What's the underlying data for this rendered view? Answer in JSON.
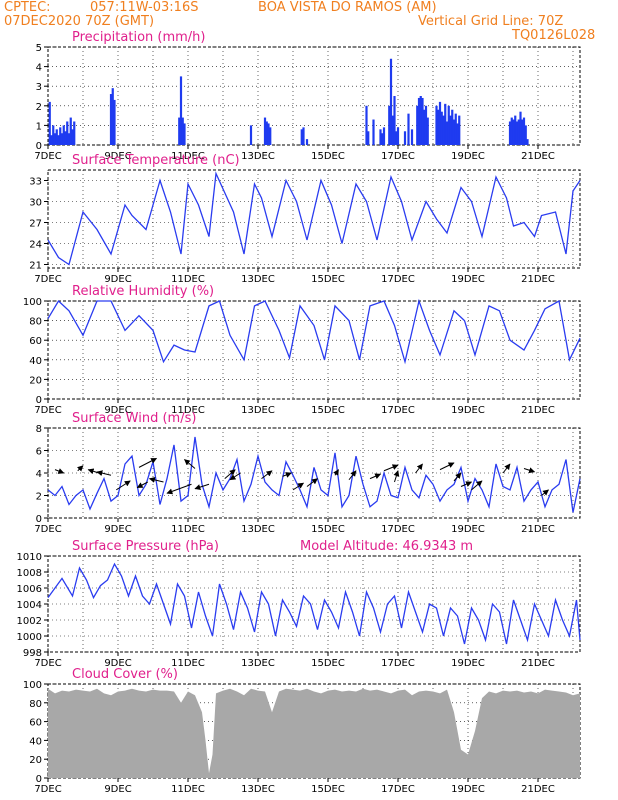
{
  "header": {
    "source": "CPTEC:",
    "coords": "057:11W-03:16S",
    "station": "BOA VISTA DO RAMOS (AM)",
    "datetime": "07DEC2020 70Z (GMT)",
    "grid_line": "Vertical Grid Line: 70Z",
    "code": "TQ0126L028"
  },
  "colors": {
    "line": "#2a3cf0",
    "bar": "#1f3bf0",
    "cloud": "#a8a8a8",
    "title": "#e0208c",
    "header": "#f07f1f",
    "grid": "#000000"
  },
  "chart_data": [
    {
      "id": "precip",
      "type": "bar",
      "title": "Precipitation (mm/h)",
      "ylim": [
        0,
        5
      ],
      "yticks": [
        0,
        1,
        2,
        3,
        4,
        5
      ],
      "xlim": [
        7,
        22.2
      ],
      "xticks": [
        "7DEC",
        "9DEC",
        "11DEC",
        "13DEC",
        "15DEC",
        "17DEC",
        "19DEC",
        "21DEC"
      ],
      "xtick_days": [
        7,
        9,
        11,
        13,
        15,
        17,
        19,
        21
      ],
      "x": [
        7.05,
        7.1,
        7.15,
        7.2,
        7.25,
        7.3,
        7.35,
        7.4,
        7.45,
        7.5,
        7.55,
        7.6,
        7.65,
        7.7,
        7.75,
        8.8,
        8.85,
        8.9,
        10.75,
        10.8,
        10.85,
        10.9,
        12.8,
        13.2,
        13.25,
        13.3,
        13.35,
        14.25,
        14.3,
        14.4,
        16.1,
        16.15,
        16.3,
        16.5,
        16.55,
        16.6,
        16.75,
        16.8,
        16.85,
        16.9,
        16.95,
        17.0,
        17.2,
        17.3,
        17.4,
        17.55,
        17.6,
        17.65,
        17.7,
        17.75,
        17.8,
        17.85,
        18.1,
        18.15,
        18.2,
        18.25,
        18.3,
        18.35,
        18.4,
        18.45,
        18.5,
        18.55,
        18.6,
        18.65,
        18.7,
        18.75,
        20.2,
        20.25,
        20.3,
        20.35,
        20.4,
        20.45,
        20.5,
        20.55,
        20.6,
        20.65,
        20.7
      ],
      "values": [
        2.2,
        0.5,
        1.0,
        0.6,
        0.8,
        0.5,
        0.9,
        0.6,
        1.0,
        0.7,
        1.2,
        0.6,
        1.4,
        0.8,
        1.2,
        2.6,
        2.9,
        2.3,
        1.4,
        3.5,
        1.4,
        1.1,
        1.0,
        1.4,
        1.2,
        1.1,
        0.9,
        0.8,
        0.9,
        0.3,
        2.0,
        0.7,
        1.3,
        0.8,
        0.6,
        0.9,
        2.0,
        4.4,
        1.5,
        2.5,
        0.7,
        0.9,
        0.7,
        1.6,
        0.8,
        2.0,
        2.4,
        2.5,
        2.4,
        1.8,
        2.0,
        1.4,
        2.0,
        1.8,
        2.2,
        1.7,
        1.5,
        2.1,
        1.2,
        2.0,
        1.5,
        1.8,
        1.3,
        1.6,
        1.1,
        1.5,
        1.2,
        1.4,
        1.3,
        1.5,
        1.2,
        1.3,
        1.7,
        1.3,
        1.4,
        1.0,
        0.3
      ]
    },
    {
      "id": "temp",
      "type": "line",
      "title": "Surface Temperature (nC)",
      "ylim": [
        20.5,
        34.5
      ],
      "yticks": [
        21,
        24,
        27,
        30,
        33
      ],
      "xlim": [
        7,
        22.2
      ],
      "xticks": [
        "7DEC",
        "9DEC",
        "11DEC",
        "13DEC",
        "15DEC",
        "17DEC",
        "19DEC",
        "21DEC"
      ],
      "xtick_days": [
        7,
        9,
        11,
        13,
        15,
        17,
        19,
        21
      ],
      "x": [
        7,
        7.3,
        7.6,
        8.0,
        8.4,
        8.8,
        9.2,
        9.4,
        9.8,
        10.2,
        10.5,
        10.8,
        11.0,
        11.3,
        11.6,
        11.8,
        12.3,
        12.6,
        12.9,
        13.1,
        13.4,
        13.8,
        14.1,
        14.4,
        14.8,
        15.1,
        15.4,
        15.8,
        16.1,
        16.4,
        16.8,
        17.1,
        17.4,
        17.8,
        18.1,
        18.4,
        18.8,
        19.1,
        19.4,
        19.8,
        20.1,
        20.3,
        20.6,
        20.9,
        21.1,
        21.5,
        21.8,
        22.0,
        22.2
      ],
      "values": [
        24.5,
        22.0,
        21.0,
        28.5,
        26.0,
        22.5,
        29.5,
        28.0,
        26.0,
        33.0,
        28.5,
        22.5,
        32.5,
        29.5,
        25.0,
        34.0,
        28.5,
        22.5,
        32.5,
        30.5,
        25.0,
        33.0,
        30.0,
        24.5,
        33.0,
        29.5,
        24.0,
        32.5,
        30.0,
        24.5,
        33.5,
        30.0,
        24.5,
        30.0,
        27.5,
        25.5,
        32.0,
        30.0,
        25.0,
        33.5,
        30.5,
        26.5,
        27.0,
        25.0,
        28.0,
        28.5,
        22.5,
        31.5,
        33.0
      ]
    },
    {
      "id": "rh",
      "type": "line",
      "title": "Relative Humidity (%)",
      "ylim": [
        0,
        100
      ],
      "yticks": [
        0,
        20,
        40,
        60,
        80,
        100
      ],
      "xlim": [
        7,
        22.2
      ],
      "xticks": [
        "7DEC",
        "9DEC",
        "11DEC",
        "13DEC",
        "15DEC",
        "17DEC",
        "19DEC",
        "21DEC"
      ],
      "xtick_days": [
        7,
        9,
        11,
        13,
        15,
        17,
        19,
        21
      ],
      "x": [
        7,
        7.3,
        7.6,
        8.0,
        8.4,
        8.8,
        9.2,
        9.6,
        10.0,
        10.3,
        10.6,
        10.9,
        11.2,
        11.6,
        11.9,
        12.2,
        12.6,
        12.9,
        13.2,
        13.6,
        13.9,
        14.2,
        14.6,
        14.9,
        15.2,
        15.6,
        15.9,
        16.2,
        16.6,
        16.9,
        17.2,
        17.6,
        17.9,
        18.2,
        18.6,
        18.9,
        19.2,
        19.6,
        19.9,
        20.2,
        20.6,
        20.9,
        21.2,
        21.6,
        21.9,
        22.2
      ],
      "values": [
        82,
        100,
        90,
        65,
        100,
        100,
        70,
        85,
        70,
        38,
        55,
        50,
        48,
        95,
        100,
        65,
        40,
        95,
        100,
        70,
        42,
        95,
        75,
        40,
        95,
        80,
        40,
        95,
        100,
        75,
        38,
        100,
        70,
        45,
        90,
        80,
        45,
        95,
        90,
        60,
        50,
        70,
        92,
        100,
        40,
        62
      ]
    },
    {
      "id": "wind",
      "type": "line",
      "title": "Surface Wind (m/s)",
      "ylim": [
        0,
        8
      ],
      "yticks": [
        0,
        2,
        4,
        6,
        8
      ],
      "xlim": [
        7,
        22.2
      ],
      "xticks": [
        "7DEC",
        "9DEC",
        "11DEC",
        "13DEC",
        "15DEC",
        "17DEC",
        "19DEC",
        "21DEC"
      ],
      "xtick_days": [
        7,
        9,
        11,
        13,
        15,
        17,
        19,
        21
      ],
      "x": [
        7,
        7.2,
        7.4,
        7.6,
        7.8,
        8.0,
        8.2,
        8.4,
        8.6,
        8.8,
        9.0,
        9.2,
        9.4,
        9.6,
        9.8,
        10.0,
        10.2,
        10.4,
        10.6,
        10.8,
        11.0,
        11.2,
        11.4,
        11.6,
        11.8,
        12.0,
        12.2,
        12.4,
        12.6,
        12.8,
        13.0,
        13.2,
        13.4,
        13.6,
        13.8,
        14.0,
        14.2,
        14.4,
        14.6,
        14.8,
        15.0,
        15.2,
        15.4,
        15.6,
        15.8,
        16.0,
        16.2,
        16.4,
        16.6,
        16.8,
        17.0,
        17.2,
        17.4,
        17.6,
        17.8,
        18.0,
        18.2,
        18.4,
        18.6,
        18.8,
        19.0,
        19.2,
        19.4,
        19.6,
        19.8,
        20.0,
        20.2,
        20.4,
        20.6,
        20.8,
        21.0,
        21.2,
        21.4,
        21.6,
        21.8,
        22.0,
        22.2
      ],
      "values": [
        2.5,
        2.0,
        2.8,
        1.2,
        2.0,
        2.5,
        0.8,
        2.2,
        3.5,
        1.5,
        2.0,
        4.8,
        5.5,
        2.0,
        3.0,
        5.0,
        1.2,
        3.5,
        6.5,
        1.5,
        2.0,
        7.2,
        3.0,
        1.0,
        4.0,
        2.5,
        3.5,
        5.2,
        1.5,
        3.0,
        5.5,
        3.2,
        2.5,
        2.0,
        5.0,
        3.8,
        2.5,
        1.0,
        4.5,
        2.5,
        2.0,
        5.8,
        1.0,
        2.0,
        5.5,
        3.0,
        1.0,
        1.5,
        4.0,
        2.0,
        1.8,
        4.5,
        2.5,
        1.8,
        3.8,
        3.0,
        1.5,
        2.5,
        3.0,
        4.5,
        1.5,
        3.5,
        2.5,
        1.0,
        4.8,
        2.8,
        2.5,
        4.5,
        1.5,
        2.5,
        3.2,
        1.0,
        2.5,
        3.0,
        5.2,
        0.5,
        3.5
      ],
      "arrows": [
        {
          "x": 7.2,
          "y": 4.3,
          "dx": 0.25,
          "dy": -0.3
        },
        {
          "x": 7.85,
          "y": 4.2,
          "dx": 0.15,
          "dy": 0.45
        },
        {
          "x": 8.45,
          "y": 4.0,
          "dx": -0.3,
          "dy": 0.3
        },
        {
          "x": 8.8,
          "y": 3.8,
          "dx": -0.4,
          "dy": 0.3
        },
        {
          "x": 8.95,
          "y": 2.5,
          "dx": 0.4,
          "dy": 0.8
        },
        {
          "x": 9.6,
          "y": 4.5,
          "dx": 0.5,
          "dy": 0.8
        },
        {
          "x": 9.85,
          "y": 3.2,
          "dx": -0.3,
          "dy": -0.5
        },
        {
          "x": 10.3,
          "y": 3.2,
          "dx": -0.4,
          "dy": 0.3
        },
        {
          "x": 11.1,
          "y": 3.0,
          "dx": -0.7,
          "dy": -0.8
        },
        {
          "x": 11.2,
          "y": 4.4,
          "dx": -0.3,
          "dy": 0.8
        },
        {
          "x": 11.6,
          "y": 3.0,
          "dx": -0.4,
          "dy": -0.4
        },
        {
          "x": 12.05,
          "y": 3.5,
          "dx": 0.3,
          "dy": 0.8
        },
        {
          "x": 12.5,
          "y": 4.0,
          "dx": -0.3,
          "dy": -0.6
        },
        {
          "x": 13.1,
          "y": 3.5,
          "dx": 0.3,
          "dy": 0.7
        },
        {
          "x": 13.7,
          "y": 3.7,
          "dx": 0.25,
          "dy": 0.3
        },
        {
          "x": 14.0,
          "y": 2.5,
          "dx": 0.3,
          "dy": 0.6
        },
        {
          "x": 14.4,
          "y": 2.8,
          "dx": 0.3,
          "dy": 0.7
        },
        {
          "x": 15.2,
          "y": 3.8,
          "dx": 0.1,
          "dy": 0.5
        },
        {
          "x": 15.6,
          "y": 3.4,
          "dx": 0.2,
          "dy": 0.8
        },
        {
          "x": 16.2,
          "y": 3.5,
          "dx": 0.3,
          "dy": 0.4
        },
        {
          "x": 16.6,
          "y": 4.2,
          "dx": 0.4,
          "dy": 0.5
        },
        {
          "x": 16.9,
          "y": 3.2,
          "dx": 0.1,
          "dy": 1.0
        },
        {
          "x": 17.5,
          "y": 4.0,
          "dx": 0.2,
          "dy": 0.8
        },
        {
          "x": 18.2,
          "y": 4.3,
          "dx": 0.4,
          "dy": 0.6
        },
        {
          "x": 18.6,
          "y": 3.3,
          "dx": 0.2,
          "dy": 0.7
        },
        {
          "x": 18.8,
          "y": 2.8,
          "dx": 0.3,
          "dy": 0.4
        },
        {
          "x": 19.1,
          "y": 2.5,
          "dx": 0.3,
          "dy": 0.8
        },
        {
          "x": 20.0,
          "y": 4.0,
          "dx": 0.2,
          "dy": 0.8
        },
        {
          "x": 20.6,
          "y": 4.4,
          "dx": 0.3,
          "dy": -0.3
        },
        {
          "x": 21.1,
          "y": 2.0,
          "dx": 0.2,
          "dy": 0.5
        }
      ]
    },
    {
      "id": "pressure",
      "type": "line",
      "title": "Surface Pressure (hPa)",
      "annotation": "Model Altitude: 46.9343 m",
      "ylim": [
        998,
        1010
      ],
      "yticks": [
        998,
        1000,
        1002,
        1004,
        1006,
        1008,
        1010
      ],
      "xlim": [
        7,
        22.2
      ],
      "xticks": [
        "7DEC",
        "9DEC",
        "11DEC",
        "13DEC",
        "15DEC",
        "17DEC",
        "19DEC",
        "21DEC"
      ],
      "xtick_days": [
        7,
        9,
        11,
        13,
        15,
        17,
        19,
        21
      ],
      "x": [
        7,
        7.2,
        7.4,
        7.7,
        7.9,
        8.1,
        8.3,
        8.5,
        8.7,
        8.9,
        9.1,
        9.3,
        9.5,
        9.7,
        9.9,
        10.1,
        10.3,
        10.5,
        10.7,
        10.9,
        11.1,
        11.3,
        11.5,
        11.7,
        11.9,
        12.1,
        12.3,
        12.5,
        12.7,
        12.9,
        13.1,
        13.3,
        13.5,
        13.7,
        13.9,
        14.1,
        14.3,
        14.5,
        14.7,
        14.9,
        15.1,
        15.3,
        15.5,
        15.7,
        15.9,
        16.1,
        16.3,
        16.5,
        16.7,
        16.9,
        17.1,
        17.3,
        17.5,
        17.7,
        17.9,
        18.1,
        18.3,
        18.5,
        18.7,
        18.9,
        19.1,
        19.3,
        19.5,
        19.7,
        19.9,
        20.1,
        20.3,
        20.5,
        20.7,
        20.9,
        21.1,
        21.3,
        21.5,
        21.7,
        21.9,
        22.1,
        22.2
      ],
      "values": [
        1004.8,
        1006.0,
        1007.2,
        1005.0,
        1008.5,
        1007.0,
        1004.8,
        1006.3,
        1007.0,
        1009.0,
        1007.5,
        1005.0,
        1007.5,
        1005.0,
        1004.0,
        1006.5,
        1004.0,
        1001.5,
        1006.5,
        1005.0,
        1001.0,
        1005.5,
        1002.5,
        1000.0,
        1006.5,
        1004.0,
        1000.8,
        1005.5,
        1003.5,
        1000.5,
        1005.5,
        1004.0,
        1000.0,
        1004.5,
        1003.0,
        1001.2,
        1005.0,
        1004.0,
        1000.8,
        1004.5,
        1003.0,
        1001.0,
        1005.5,
        1003.0,
        1000.0,
        1005.5,
        1003.5,
        1000.5,
        1004.0,
        1005.0,
        1001.0,
        1005.5,
        1003.0,
        1000.5,
        1004.0,
        1003.5,
        1000.0,
        1003.5,
        1002.5,
        999.0,
        1003.5,
        1002.0,
        999.5,
        1004.0,
        1003.0,
        999.0,
        1004.5,
        1002.0,
        999.5,
        1004.0,
        1002.0,
        1000.0,
        1004.5,
        1002.0,
        1000.0,
        1004.5,
        999.5
      ]
    },
    {
      "id": "cloud",
      "type": "area",
      "title": "Cloud Cover (%)",
      "ylim": [
        0,
        100
      ],
      "yticks": [
        0,
        20,
        40,
        60,
        80,
        100
      ],
      "xlim": [
        7,
        22.2
      ],
      "xticks": [
        "7DEC",
        "9DEC",
        "11DEC",
        "13DEC",
        "15DEC",
        "17DEC",
        "19DEC",
        "21DEC"
      ],
      "xtick_days": [
        7,
        9,
        11,
        13,
        15,
        17,
        19,
        21
      ],
      "x": [
        7,
        7.2,
        7.4,
        7.6,
        7.8,
        8.0,
        8.2,
        8.4,
        8.6,
        8.8,
        9.0,
        9.2,
        9.4,
        9.6,
        9.8,
        10.0,
        10.2,
        10.4,
        10.6,
        10.8,
        11.0,
        11.2,
        11.4,
        11.5,
        11.6,
        11.7,
        11.8,
        12.0,
        12.2,
        12.4,
        12.6,
        12.8,
        13.0,
        13.2,
        13.4,
        13.6,
        13.8,
        14.0,
        14.2,
        14.4,
        14.6,
        14.8,
        15.0,
        15.2,
        15.4,
        15.6,
        15.8,
        16.0,
        16.2,
        16.4,
        16.6,
        16.8,
        17.0,
        17.2,
        17.4,
        17.6,
        17.8,
        18.0,
        18.2,
        18.4,
        18.6,
        18.8,
        19.0,
        19.2,
        19.4,
        19.6,
        19.8,
        20.0,
        20.2,
        20.4,
        20.6,
        20.8,
        21.0,
        21.2,
        21.4,
        21.6,
        21.8,
        22.0,
        22.2
      ],
      "values": [
        95,
        90,
        93,
        92,
        94,
        93,
        92,
        95,
        90,
        88,
        92,
        93,
        95,
        93,
        92,
        94,
        93,
        93,
        92,
        80,
        92,
        88,
        70,
        40,
        5,
        25,
        90,
        93,
        95,
        92,
        88,
        95,
        93,
        92,
        70,
        92,
        95,
        94,
        93,
        95,
        92,
        90,
        93,
        94,
        92,
        93,
        92,
        95,
        93,
        94,
        92,
        90,
        93,
        94,
        88,
        92,
        93,
        92,
        90,
        94,
        70,
        30,
        25,
        50,
        85,
        92,
        90,
        93,
        92,
        93,
        91,
        92,
        90,
        94,
        93,
        92,
        91,
        88,
        90
      ]
    }
  ]
}
